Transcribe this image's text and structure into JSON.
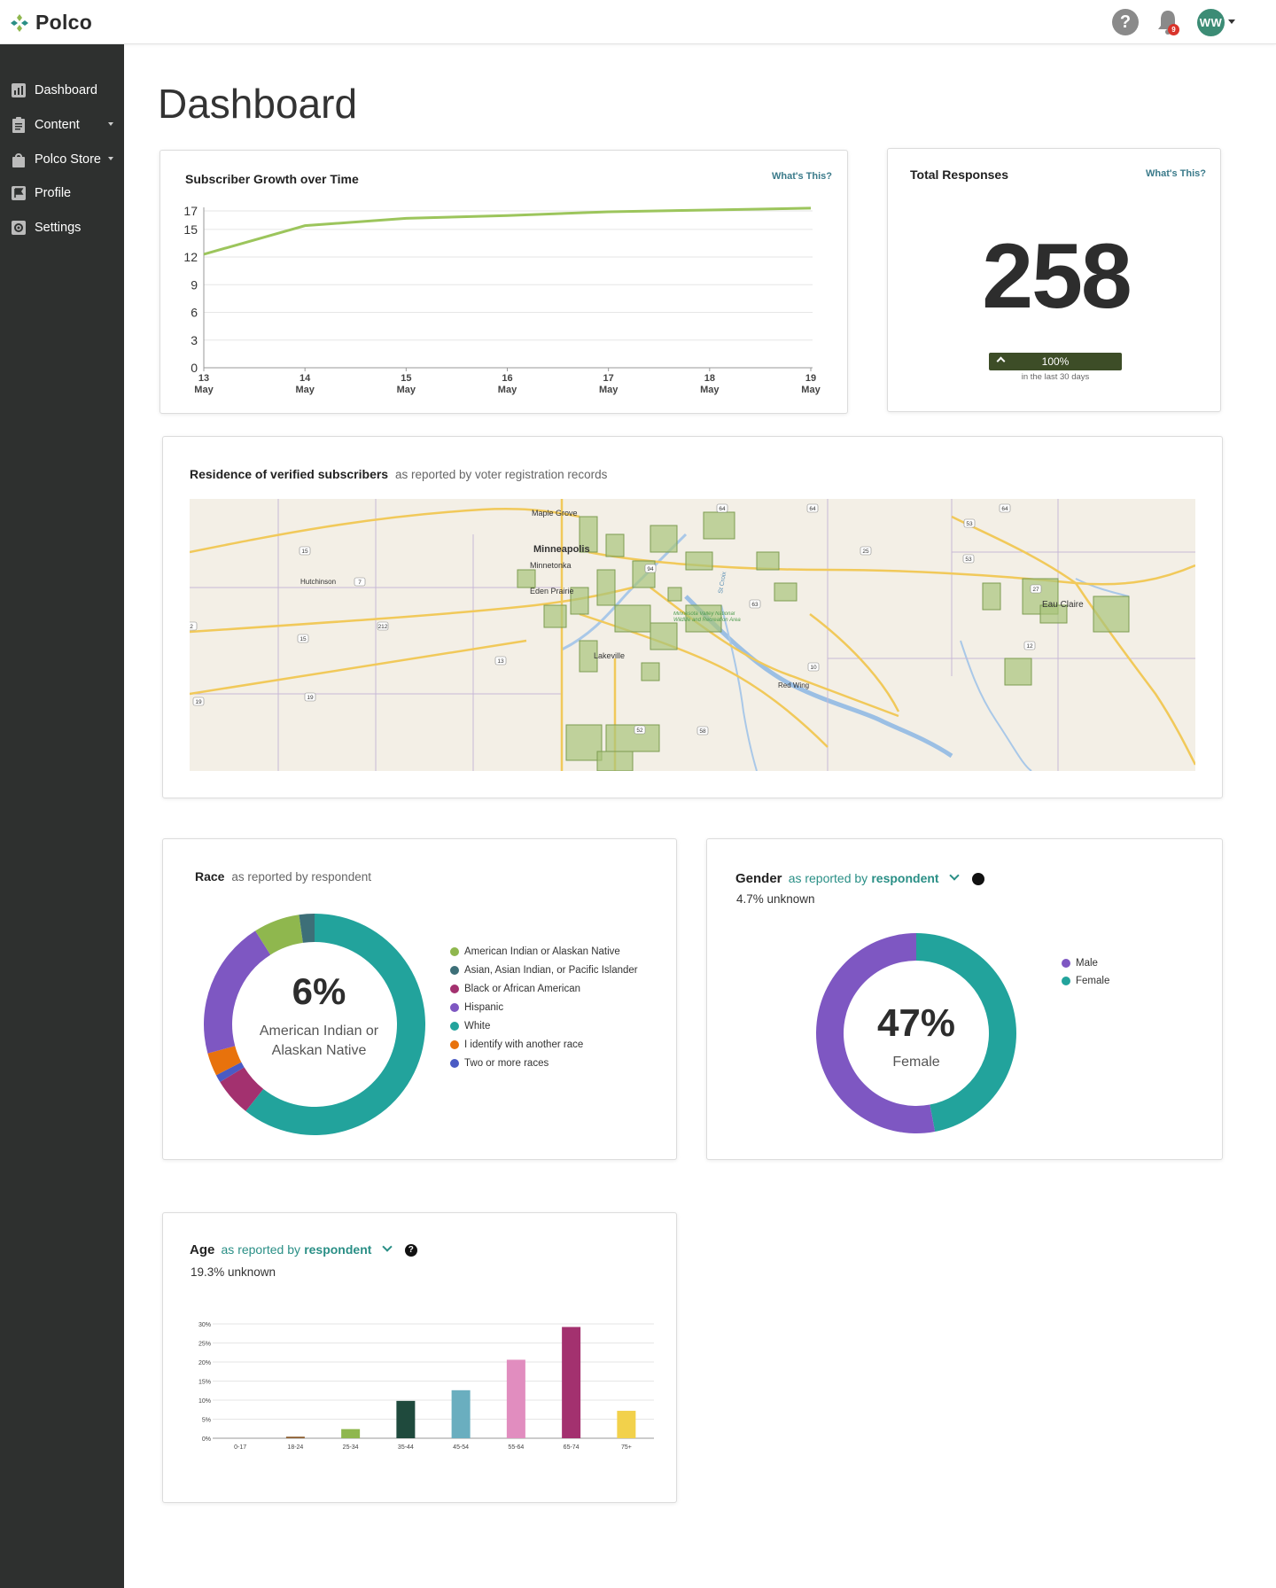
{
  "topbar": {
    "logo_text": "Polco",
    "help_label": "?",
    "notification_count": "9",
    "avatar_initials": "WW"
  },
  "sidebar": {
    "items": [
      {
        "label": "Dashboard",
        "icon": "bar-chart-icon"
      },
      {
        "label": "Content",
        "icon": "clipboard-icon"
      },
      {
        "label": "Polco Store",
        "icon": "shopping-bag-icon"
      },
      {
        "label": "Profile",
        "icon": "flag-icon"
      },
      {
        "label": "Settings",
        "icon": "gear-icon"
      }
    ]
  },
  "page": {
    "title": "Dashboard"
  },
  "growth": {
    "title": "Subscriber Growth over Time",
    "whats_this": "What's This?"
  },
  "responses": {
    "title": "Total Responses",
    "whats_this": "What's This?",
    "total": "258",
    "change": "100%",
    "period": "in the last 30 days"
  },
  "map": {
    "title": "Residence of verified subscribers",
    "subtitle": "as reported by voter registration records",
    "places": [
      "Maple Grove",
      "Minneapolis",
      "Minnetonka",
      "Eden Prairie",
      "Hutchinson",
      "Lakeville",
      "Red Wing",
      "Eau Claire",
      "St Croix",
      "Minnesota Valley National Wildlife and Recreation Area"
    ],
    "routes": [
      "15",
      "7",
      "212",
      "15",
      "13",
      "19",
      "19",
      "52",
      "58",
      "10",
      "63",
      "25",
      "53",
      "53",
      "64",
      "64",
      "64",
      "27",
      "12",
      "94",
      "2"
    ]
  },
  "race": {
    "title": "Race",
    "subtitle": "as reported by respondent",
    "center_value": "6%",
    "center_label_1": "American Indian or",
    "center_label_2": "Alaskan Native",
    "legend": [
      {
        "label": "American Indian or Alaskan Native",
        "color": "#8fb74e"
      },
      {
        "label": "Asian, Asian Indian, or Pacific Islander",
        "color": "#3d6f78"
      },
      {
        "label": "Black or African American",
        "color": "#a3316f"
      },
      {
        "label": "Hispanic",
        "color": "#7e57c2"
      },
      {
        "label": "White",
        "color": "#22a39c"
      },
      {
        "label": "I identify with another race",
        "color": "#e8720c"
      },
      {
        "label": "Two or more races",
        "color": "#4a5bc4"
      }
    ]
  },
  "gender": {
    "title": "Gender",
    "subtitle": "as reported by",
    "subtitle_strong": "respondent",
    "unknown": "4.7% unknown",
    "center_value": "47%",
    "center_label": "Female",
    "legend": [
      {
        "label": "Male",
        "color": "#7e57c2"
      },
      {
        "label": "Female",
        "color": "#22a39c"
      }
    ]
  },
  "age": {
    "title": "Age",
    "subtitle": "as reported by",
    "subtitle_strong": "respondent",
    "unknown": "19.3% unknown"
  },
  "chart_data": [
    {
      "type": "line",
      "title": "Subscriber Growth over Time",
      "x": [
        "13 May",
        "14 May",
        "15 May",
        "16 May",
        "17 May",
        "18 May",
        "19 May"
      ],
      "y": [
        12.3,
        15.4,
        16.2,
        16.5,
        16.9,
        17.1,
        17.3
      ],
      "yticks": [
        0,
        3,
        6,
        9,
        12,
        15,
        17
      ],
      "ylim": [
        0,
        17
      ],
      "grid": true,
      "color": "#9cc55c"
    },
    {
      "type": "pie",
      "title": "Race",
      "labels": [
        "White",
        "Black or African American",
        "Two or more races",
        "I identify with another race",
        "Hispanic",
        "American Indian or Alaskan Native",
        "Asian, Asian Indian, or Pacific Islander"
      ],
      "values": [
        54,
        5,
        1,
        3,
        18,
        6,
        2
      ],
      "colors": [
        "#22a39c",
        "#a3316f",
        "#4a5bc4",
        "#e8720c",
        "#7e57c2",
        "#8fb74e",
        "#3d6f78"
      ]
    },
    {
      "type": "pie",
      "title": "Gender",
      "labels": [
        "Female",
        "Male"
      ],
      "values": [
        47,
        53
      ],
      "colors": [
        "#22a39c",
        "#7e57c2"
      ]
    },
    {
      "type": "bar",
      "title": "Age",
      "categories": [
        "0-17",
        "18-24",
        "25-34",
        "35-44",
        "45-54",
        "55-64",
        "65-74",
        "75+"
      ],
      "values": [
        0,
        0.4,
        2.4,
        9.8,
        12.6,
        20.6,
        29.2,
        7.2
      ],
      "colors": [
        "#cccccc",
        "#8a5a2b",
        "#8fb74e",
        "#1f4a3d",
        "#6aaebf",
        "#e18dbf",
        "#a3316f",
        "#f2d14b"
      ],
      "yticks": [
        "0%",
        "5%",
        "10%",
        "15%",
        "20%",
        "25%",
        "30%"
      ],
      "ylim": [
        0,
        30
      ]
    }
  ]
}
